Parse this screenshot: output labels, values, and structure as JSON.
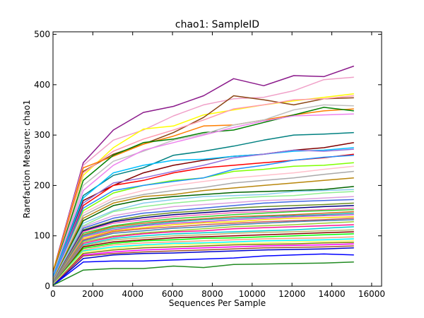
{
  "chart_data": {
    "type": "line",
    "title": "chao1: SampleID",
    "xlabel": "Sequences Per Sample",
    "ylabel": "Rarefaction Measure: chao1",
    "xlim": [
      0,
      16500
    ],
    "ylim": [
      0,
      505
    ],
    "xticks": [
      "0",
      "2000",
      "4000",
      "6000",
      "8000",
      "10000",
      "12000",
      "14000",
      "16000"
    ],
    "yticks": [
      "0",
      "100",
      "200",
      "300",
      "400",
      "500"
    ],
    "grid": false,
    "legend": "none",
    "x": [
      10,
      1520,
      3030,
      4540,
      6050,
      7560,
      9070,
      10580,
      12090,
      13600,
      15110
    ],
    "series": [
      {
        "color": "#8b1a8b",
        "values": [
          30,
          245,
          310,
          345,
          357,
          378,
          412,
          398,
          418,
          416,
          437
        ]
      },
      {
        "color": "#f0a0c8",
        "values": [
          28,
          240,
          290,
          310,
          338,
          360,
          372,
          375,
          388,
          410,
          415
        ]
      },
      {
        "color": "#ffff00",
        "values": [
          32,
          220,
          275,
          312,
          318,
          340,
          350,
          360,
          368,
          375,
          382
        ]
      },
      {
        "color": "#8b4513",
        "values": [
          30,
          228,
          262,
          282,
          305,
          335,
          378,
          370,
          360,
          372,
          374
        ]
      },
      {
        "color": "#ff9bb0",
        "values": [
          26,
          225,
          268,
          292,
          310,
          330,
          352,
          360,
          370,
          372,
          378
        ]
      },
      {
        "color": "#ff7f00",
        "values": [
          28,
          235,
          258,
          282,
          298,
          318,
          320,
          330,
          340,
          348,
          352
        ]
      },
      {
        "color": "#008000",
        "values": [
          25,
          210,
          260,
          285,
          292,
          305,
          310,
          325,
          340,
          355,
          348
        ]
      },
      {
        "color": "#c0c0c0",
        "values": [
          24,
          200,
          248,
          268,
          290,
          302,
          320,
          330,
          350,
          360,
          358
        ]
      },
      {
        "color": "#ee82ee",
        "values": [
          22,
          190,
          240,
          270,
          285,
          300,
          315,
          328,
          338,
          340,
          342
        ]
      },
      {
        "color": "#008080",
        "values": [
          20,
          180,
          220,
          235,
          260,
          268,
          278,
          290,
          300,
          302,
          305
        ]
      },
      {
        "color": "#800000",
        "values": [
          18,
          170,
          200,
          225,
          240,
          250,
          258,
          262,
          270,
          275,
          285
        ]
      },
      {
        "color": "#00bfff",
        "values": [
          20,
          175,
          225,
          240,
          250,
          252,
          258,
          262,
          268,
          270,
          275
        ]
      },
      {
        "color": "#ff0000",
        "values": [
          15,
          160,
          200,
          210,
          225,
          235,
          240,
          245,
          250,
          255,
          262
        ]
      },
      {
        "color": "#9370db",
        "values": [
          16,
          165,
          205,
          215,
          228,
          240,
          255,
          262,
          270,
          268,
          272
        ]
      },
      {
        "color": "#7fff00",
        "values": [
          14,
          150,
          185,
          200,
          210,
          215,
          228,
          232,
          238,
          240,
          245
        ]
      },
      {
        "color": "#1e90ff",
        "values": [
          14,
          155,
          190,
          200,
          208,
          215,
          232,
          240,
          250,
          256,
          260
        ]
      },
      {
        "color": "#ffc0cb",
        "values": [
          13,
          145,
          175,
          190,
          200,
          208,
          215,
          220,
          225,
          232,
          238
        ]
      },
      {
        "color": "#a9a9a9",
        "values": [
          12,
          140,
          170,
          182,
          190,
          196,
          205,
          210,
          215,
          222,
          228
        ]
      },
      {
        "color": "#b8860b",
        "values": [
          12,
          135,
          165,
          178,
          182,
          190,
          195,
          200,
          205,
          210,
          215
        ]
      },
      {
        "color": "#006400",
        "values": [
          10,
          130,
          160,
          172,
          178,
          182,
          186,
          188,
          190,
          192,
          198
        ]
      },
      {
        "color": "#87ceeb",
        "values": [
          10,
          125,
          150,
          165,
          172,
          178,
          180,
          182,
          188,
          190,
          192
        ]
      },
      {
        "color": "#90ee90",
        "values": [
          9,
          120,
          148,
          158,
          165,
          170,
          175,
          178,
          180,
          185,
          188
        ]
      },
      {
        "color": "#dda0dd",
        "values": [
          9,
          118,
          140,
          150,
          158,
          162,
          166,
          170,
          172,
          175,
          178
        ]
      },
      {
        "color": "#4169e1",
        "values": [
          8,
          115,
          135,
          145,
          150,
          155,
          160,
          165,
          168,
          170,
          172
        ]
      },
      {
        "color": "#6b8e23",
        "values": [
          8,
          112,
          130,
          140,
          146,
          150,
          155,
          158,
          160,
          162,
          165
        ]
      },
      {
        "color": "#000080",
        "values": [
          7,
          110,
          128,
          136,
          142,
          146,
          150,
          152,
          155,
          158,
          160
        ]
      },
      {
        "color": "#ff69b4",
        "values": [
          7,
          108,
          125,
          132,
          138,
          142,
          146,
          148,
          150,
          152,
          155
        ]
      },
      {
        "color": "#32cd32",
        "values": [
          6,
          105,
          120,
          128,
          134,
          138,
          142,
          145,
          148,
          150,
          152
        ]
      },
      {
        "color": "#d2691e",
        "values": [
          6,
          102,
          118,
          125,
          130,
          134,
          138,
          140,
          142,
          145,
          148
        ]
      },
      {
        "color": "#20b2aa",
        "values": [
          6,
          100,
          115,
          122,
          128,
          132,
          135,
          138,
          140,
          142,
          145
        ]
      },
      {
        "color": "#ba55d3",
        "values": [
          5,
          98,
          112,
          120,
          125,
          128,
          132,
          135,
          138,
          140,
          142
        ]
      },
      {
        "color": "#ffd700",
        "values": [
          5,
          95,
          110,
          116,
          122,
          126,
          128,
          132,
          135,
          136,
          138
        ]
      },
      {
        "color": "#cd5c5c",
        "values": [
          5,
          92,
          108,
          114,
          118,
          122,
          125,
          128,
          130,
          132,
          135
        ]
      },
      {
        "color": "#4682b4",
        "values": [
          5,
          90,
          105,
          110,
          115,
          118,
          122,
          125,
          128,
          130,
          132
        ]
      },
      {
        "color": "#9acd32",
        "values": [
          4,
          88,
          100,
          106,
          110,
          114,
          118,
          120,
          122,
          125,
          128
        ]
      },
      {
        "color": "#ff1493",
        "values": [
          4,
          85,
          98,
          104,
          108,
          110,
          114,
          116,
          118,
          120,
          122
        ]
      },
      {
        "color": "#00ced1",
        "values": [
          4,
          82,
          95,
          100,
          104,
          106,
          108,
          110,
          112,
          115,
          118
        ]
      },
      {
        "color": "#bdb76b",
        "values": [
          4,
          80,
          92,
          96,
          100,
          102,
          105,
          107,
          108,
          110,
          112
        ]
      },
      {
        "color": "#8b0000",
        "values": [
          3,
          78,
          88,
          92,
          96,
          98,
          100,
          102,
          104,
          106,
          108
        ]
      },
      {
        "color": "#00ff00",
        "values": [
          3,
          75,
          85,
          90,
          92,
          95,
          96,
          98,
          100,
          102,
          104
        ]
      },
      {
        "color": "#ffa07a",
        "values": [
          3,
          72,
          82,
          86,
          88,
          90,
          92,
          94,
          95,
          96,
          98
        ]
      },
      {
        "color": "#00ffff",
        "values": [
          3,
          70,
          78,
          82,
          85,
          86,
          88,
          90,
          91,
          92,
          94
        ]
      },
      {
        "color": "#ffff66",
        "values": [
          3,
          68,
          75,
          80,
          82,
          84,
          85,
          86,
          88,
          89,
          90
        ]
      },
      {
        "color": "#808000",
        "values": [
          2,
          65,
          72,
          76,
          78,
          80,
          82,
          83,
          84,
          86,
          87
        ]
      },
      {
        "color": "#ff00ff",
        "values": [
          2,
          62,
          68,
          72,
          74,
          76,
          78,
          80,
          81,
          82,
          84
        ]
      },
      {
        "color": "#a0522d",
        "values": [
          2,
          60,
          65,
          68,
          70,
          72,
          74,
          76,
          77,
          78,
          80
        ]
      },
      {
        "color": "#0000cd",
        "values": [
          2,
          55,
          62,
          65,
          66,
          68,
          70,
          72,
          73,
          74,
          76
        ]
      },
      {
        "color": "#0000ff",
        "values": [
          2,
          48,
          50,
          50,
          52,
          54,
          56,
          60,
          62,
          64,
          62
        ]
      },
      {
        "color": "#228b22",
        "values": [
          2,
          32,
          35,
          35,
          40,
          37,
          43,
          44,
          45,
          46,
          48
        ]
      }
    ]
  }
}
